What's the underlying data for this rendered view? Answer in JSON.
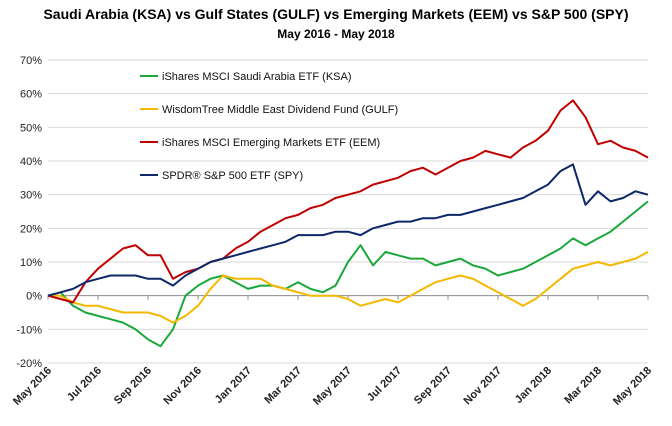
{
  "chart_data": {
    "type": "line",
    "title": "Saudi Arabia (KSA) vs Gulf States (GULF) vs Emerging Markets (EEM) vs S&P 500  (SPY)",
    "subtitle": "May  2016 - May 2018",
    "ylim": [
      -20,
      70
    ],
    "yticks": [
      -20,
      -10,
      0,
      10,
      20,
      30,
      40,
      50,
      60,
      70
    ],
    "ytick_labels": [
      "-20%",
      "-10%",
      "0%",
      "10%",
      "20%",
      "30%",
      "40%",
      "50%",
      "60%",
      "70%"
    ],
    "xticks": [
      "May 2016",
      "Jul 2016",
      "Sep 2016",
      "Nov 2016",
      "Jan 2017",
      "Mar 2017",
      "May 2017",
      "Jul 2017",
      "Sep 2017",
      "Nov 2017",
      "Jan 2018",
      "Mar 2018",
      "May 2018"
    ],
    "grid": true,
    "legend_position": "top-left",
    "series": [
      {
        "name": "iShares MSCI Saudi Arabia ETF (KSA)",
        "color": "#1aa83c",
        "x": [
          0,
          0.5,
          1,
          1.5,
          2,
          2.5,
          3,
          3.5,
          4,
          4.5,
          5,
          5.5,
          6,
          6.5,
          7,
          7.5,
          8,
          8.5,
          9,
          9.5,
          10,
          10.5,
          11,
          11.5,
          12,
          12.5,
          13,
          13.5,
          14,
          14.5,
          15,
          15.5,
          16,
          16.5,
          17,
          17.5,
          18,
          18.5,
          19,
          19.5,
          20,
          20.5,
          21,
          21.5,
          22,
          22.5,
          23,
          23.5,
          24
        ],
        "y": [
          0,
          1,
          -3,
          -5,
          -6,
          -7,
          -8,
          -10,
          -13,
          -15,
          -10,
          0,
          3,
          5,
          6,
          4,
          2,
          3,
          3,
          2,
          4,
          2,
          1,
          3,
          10,
          15,
          9,
          13,
          12,
          11,
          11,
          9,
          10,
          11,
          9,
          8,
          6,
          7,
          8,
          10,
          12,
          14,
          17,
          15,
          17,
          19,
          22,
          25,
          28
        ]
      },
      {
        "name": "WisdomTree Middle East Dividend Fund (GULF)",
        "color": "#f5b800",
        "x": [
          0,
          0.5,
          1,
          1.5,
          2,
          2.5,
          3,
          3.5,
          4,
          4.5,
          5,
          5.5,
          6,
          6.5,
          7,
          7.5,
          8,
          8.5,
          9,
          9.5,
          10,
          10.5,
          11,
          11.5,
          12,
          12.5,
          13,
          13.5,
          14,
          14.5,
          15,
          15.5,
          16,
          16.5,
          17,
          17.5,
          18,
          18.5,
          19,
          19.5,
          20,
          20.5,
          21,
          21.5,
          22,
          22.5,
          23,
          23.5,
          24
        ],
        "y": [
          0,
          0,
          -2,
          -3,
          -3,
          -4,
          -5,
          -5,
          -5,
          -6,
          -8,
          -6,
          -3,
          2,
          6,
          5,
          5,
          5,
          3,
          2,
          1,
          0,
          0,
          0,
          -1,
          -3,
          -2,
          -1,
          -2,
          0,
          2,
          4,
          5,
          6,
          5,
          3,
          1,
          -1,
          -3,
          -1,
          2,
          5,
          8,
          9,
          10,
          9,
          10,
          11,
          13
        ]
      },
      {
        "name": "iShares MSCI Emerging Markets ETF (EEM)",
        "color": "#c00000",
        "x": [
          0,
          0.5,
          1,
          1.5,
          2,
          2.5,
          3,
          3.5,
          4,
          4.5,
          5,
          5.5,
          6,
          6.5,
          7,
          7.5,
          8,
          8.5,
          9,
          9.5,
          10,
          10.5,
          11,
          11.5,
          12,
          12.5,
          13,
          13.5,
          14,
          14.5,
          15,
          15.5,
          16,
          16.5,
          17,
          17.5,
          18,
          18.5,
          19,
          19.5,
          20,
          20.5,
          21,
          21.5,
          22,
          22.5,
          23,
          23.5,
          24
        ],
        "y": [
          0,
          -1,
          -2,
          4,
          8,
          11,
          14,
          15,
          12,
          12,
          5,
          7,
          8,
          10,
          11,
          14,
          16,
          19,
          21,
          23,
          24,
          26,
          27,
          29,
          30,
          31,
          33,
          34,
          35,
          37,
          38,
          36,
          38,
          40,
          41,
          43,
          42,
          41,
          44,
          46,
          49,
          55,
          58,
          53,
          45,
          46,
          44,
          43,
          41
        ]
      },
      {
        "name": "SPDR® S&P 500 ETF (SPY)",
        "color": "#0c2868",
        "x": [
          0,
          0.5,
          1,
          1.5,
          2,
          2.5,
          3,
          3.5,
          4,
          4.5,
          5,
          5.5,
          6,
          6.5,
          7,
          7.5,
          8,
          8.5,
          9,
          9.5,
          10,
          10.5,
          11,
          11.5,
          12,
          12.5,
          13,
          13.5,
          14,
          14.5,
          15,
          15.5,
          16,
          16.5,
          17,
          17.5,
          18,
          18.5,
          19,
          19.5,
          20,
          20.5,
          21,
          21.5,
          22,
          22.5,
          23,
          23.5,
          24
        ],
        "y": [
          0,
          1,
          2,
          4,
          5,
          6,
          6,
          6,
          5,
          5,
          3,
          6,
          8,
          10,
          11,
          12,
          13,
          14,
          15,
          16,
          18,
          18,
          18,
          19,
          19,
          18,
          20,
          21,
          22,
          22,
          23,
          23,
          24,
          24,
          25,
          26,
          27,
          28,
          29,
          31,
          33,
          37,
          39,
          27,
          31,
          28,
          29,
          31,
          30
        ]
      }
    ]
  }
}
